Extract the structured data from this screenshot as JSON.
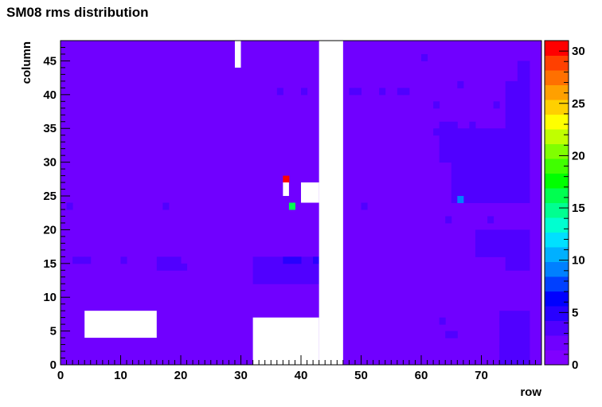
{
  "chart_data": {
    "type": "heatmap",
    "title": "SM08 rms distribution",
    "xlabel": "row",
    "ylabel": "column",
    "xlim": [
      0,
      80
    ],
    "ylim": [
      0,
      48
    ],
    "zlim": [
      0,
      31
    ],
    "x_ticks": [
      "0",
      "10",
      "20",
      "30",
      "40",
      "50",
      "60",
      "70"
    ],
    "y_ticks": [
      "0",
      "5",
      "10",
      "15",
      "20",
      "25",
      "30",
      "35",
      "40",
      "45"
    ],
    "z_ticks": [
      "0",
      "5",
      "10",
      "15",
      "20",
      "25",
      "30"
    ],
    "background_value": 2,
    "colors": {
      "base": "#7a00ff",
      "scale": [
        "#8000ff",
        "#7000ff",
        "#5000ff",
        "#2800ff",
        "#0000ff",
        "#0040ff",
        "#0080ff",
        "#00b0ff",
        "#00e0ff",
        "#00ffd0",
        "#00ff90",
        "#00ff50",
        "#00ff00",
        "#40ff00",
        "#80ff00",
        "#c0ff00",
        "#ffff00",
        "#ffd000",
        "#ffa000",
        "#ff7000",
        "#ff4000",
        "#ff0000"
      ]
    },
    "empty_regions": [
      {
        "x": [
          29,
          30
        ],
        "y": [
          44,
          48
        ]
      },
      {
        "x": [
          43,
          47
        ],
        "y": [
          0,
          48
        ]
      },
      {
        "x": [
          40,
          43
        ],
        "y": [
          24,
          27
        ]
      },
      {
        "x": [
          37,
          38
        ],
        "y": [
          25,
          27
        ]
      },
      {
        "x": [
          32,
          43
        ],
        "y": [
          0,
          7
        ]
      },
      {
        "x": [
          4,
          16
        ],
        "y": [
          4,
          8
        ]
      }
    ],
    "cells": [
      {
        "x": 37,
        "y": 27,
        "value": 31
      },
      {
        "x": 38,
        "y": 23,
        "value": 16
      },
      {
        "x": 66,
        "y": 24,
        "value": 9
      },
      {
        "x": 37,
        "y": 15,
        "value": 5
      },
      {
        "x": 38,
        "y": 15,
        "value": 5
      },
      {
        "x": 39,
        "y": 15,
        "value": 5
      },
      {
        "x": 42,
        "y": 15,
        "value": 5
      },
      {
        "x": 63,
        "y": 6,
        "value": 4
      },
      {
        "x": 66,
        "y": 41,
        "value": 4
      },
      {
        "x": 74,
        "y": 33,
        "value": 4
      },
      {
        "x": 2,
        "y": 15,
        "value": 3
      },
      {
        "x": 3,
        "y": 15,
        "value": 3
      },
      {
        "x": 4,
        "y": 15,
        "value": 3
      },
      {
        "x": 10,
        "y": 15,
        "value": 3
      },
      {
        "x": 36,
        "y": 40,
        "value": 3
      },
      {
        "x": 40,
        "y": 40,
        "value": 3
      },
      {
        "x": 48,
        "y": 40,
        "value": 3
      },
      {
        "x": 49,
        "y": 40,
        "value": 3
      },
      {
        "x": 53,
        "y": 40,
        "value": 3
      },
      {
        "x": 56,
        "y": 40,
        "value": 3
      },
      {
        "x": 57,
        "y": 40,
        "value": 3
      },
      {
        "x": 62,
        "y": 34,
        "value": 3
      },
      {
        "x": 64,
        "y": 4,
        "value": 3
      },
      {
        "x": 65,
        "y": 4,
        "value": 3
      },
      {
        "x": 64,
        "y": 21,
        "value": 3
      },
      {
        "x": 71,
        "y": 21,
        "value": 3
      },
      {
        "x": 68,
        "y": 35,
        "value": 3
      },
      {
        "x": 73,
        "y": 2,
        "value": 3
      },
      {
        "x": 74,
        "y": 2,
        "value": 3
      },
      {
        "x": 73,
        "y": 6,
        "value": 3
      },
      {
        "x": 1,
        "y": 23,
        "value": 3
      },
      {
        "x": 17,
        "y": 23,
        "value": 3
      },
      {
        "x": 50,
        "y": 23,
        "value": 3
      },
      {
        "x": 60,
        "y": 45,
        "value": 3
      },
      {
        "x": 62,
        "y": 38,
        "value": 3
      },
      {
        "x": 72,
        "y": 38,
        "value": 3
      }
    ],
    "blocks": [
      {
        "x": [
          16,
          20
        ],
        "y": [
          14,
          16
        ],
        "value": 3
      },
      {
        "x": 20,
        "y": [
          14,
          15
        ],
        "value": 3
      },
      {
        "x": [
          32,
          43
        ],
        "y": [
          12,
          16
        ],
        "value": 3
      },
      {
        "x": [
          65,
          75
        ],
        "y": [
          24,
          35
        ],
        "value": 3
      },
      {
        "x": [
          75,
          78
        ],
        "y": [
          24,
          35
        ],
        "value": 3
      },
      {
        "x": [
          74,
          78
        ],
        "y": [
          35,
          42
        ],
        "value": 3
      },
      {
        "x": [
          76,
          78
        ],
        "y": [
          42,
          45
        ],
        "value": 3
      },
      {
        "x": [
          73,
          78
        ],
        "y": [
          0,
          8
        ],
        "value": 3
      },
      {
        "x": [
          74,
          78
        ],
        "y": [
          14,
          20
        ],
        "value": 3
      },
      {
        "x": [
          69,
          74
        ],
        "y": [
          16,
          20
        ],
        "value": 3
      },
      {
        "x": [
          63,
          66
        ],
        "y": [
          30,
          36
        ],
        "value": 3
      }
    ]
  }
}
